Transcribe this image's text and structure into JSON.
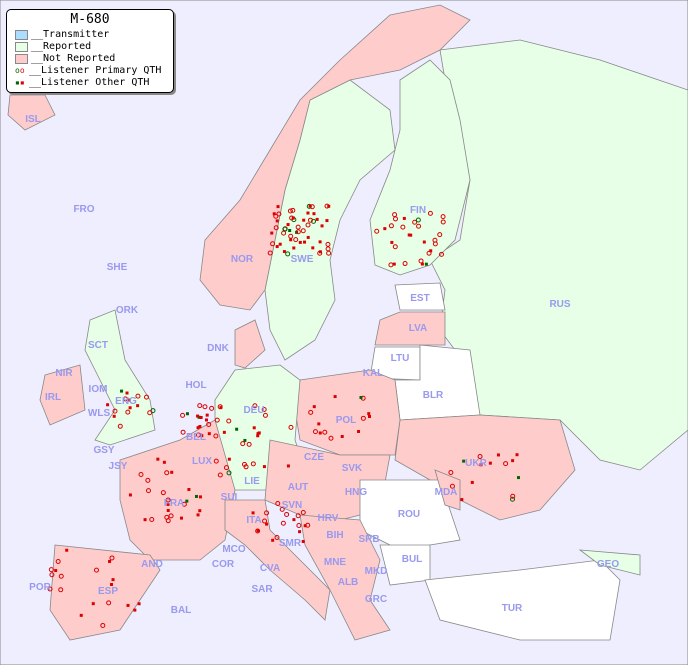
{
  "title": "M-680",
  "legend": [
    {
      "label": "__Transmitter",
      "color": "#aaddff"
    },
    {
      "label": "__Reported",
      "color": "#e6ffe6"
    },
    {
      "label": "__Not Reported",
      "color": "#ffcccc"
    },
    {
      "label": "__Listener Primary QTH",
      "colors": [
        "#006600",
        "#dd0000"
      ],
      "icon": "open-circle"
    },
    {
      "label": "__Listener Other QTH",
      "colors": [
        "#006600",
        "#dd0000"
      ],
      "icon": "filled-square"
    }
  ],
  "colors": {
    "sea": "#eeeeff",
    "reported": "#e6ffe6",
    "not_reported": "#ffcccc",
    "unknown": "#ffffff",
    "labels": "#9999ee"
  },
  "countries": [
    "ISL",
    "FRO",
    "SHE",
    "ORK",
    "NOR",
    "SWE",
    "FIN",
    "RUS",
    "EST",
    "LVA",
    "LTU",
    "KAL",
    "BLR",
    "DNK",
    "HOL",
    "DEU",
    "POL",
    "UKR",
    "IRL",
    "NIR",
    "SCT",
    "IOM",
    "WLS",
    "ENG",
    "GSY",
    "JSY",
    "BEL",
    "LUX",
    "FRA",
    "SUI",
    "LIE",
    "AUT",
    "CZE",
    "SVK",
    "HNG",
    "MDA",
    "ROU",
    "SVN",
    "HRV",
    "BIH",
    "SRB",
    "BUL",
    "MNE",
    "MKD",
    "ALB",
    "GRC",
    "TUR",
    "GEO",
    "ITA",
    "SMR",
    "MCO",
    "COR",
    "CVA",
    "SAR",
    "AND",
    "POR",
    "ESP",
    "BAL"
  ]
}
